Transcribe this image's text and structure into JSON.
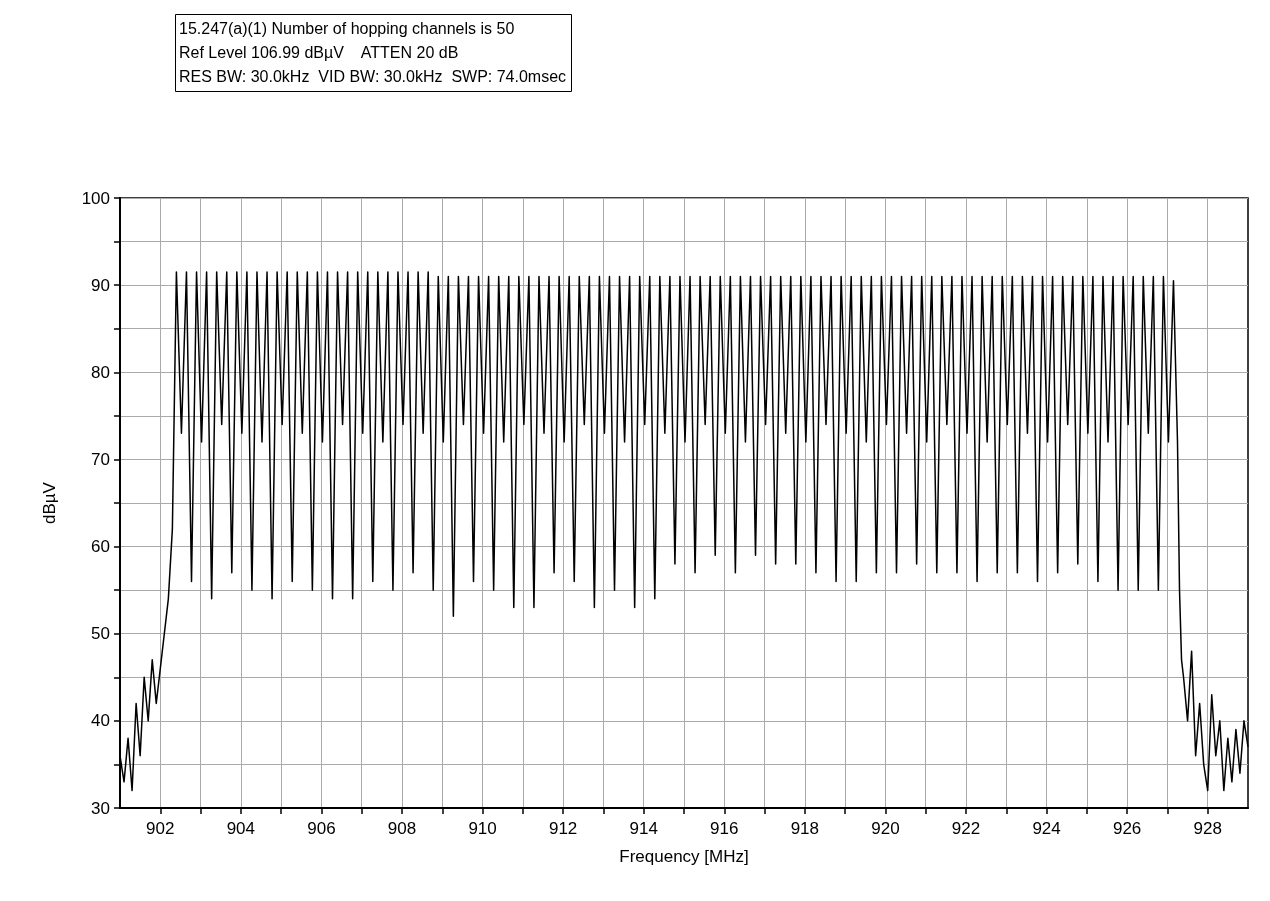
{
  "chart_data": {
    "type": "line",
    "title": "15.247(a)(1) Number of hopping channels is 50",
    "subtitle": "Ref Level 106.99 dBµV    ATTEN 20 dB\nRES BW: 30.0kHz  VID BW: 30.0kHz  SWP: 74.0msec",
    "xlabel": "Frequency [MHz]",
    "ylabel": "dBµV",
    "series": [
      {
        "color": "#000000",
        "x": [
          901.0,
          901.1,
          901.2,
          901.3,
          901.4,
          901.5,
          901.6,
          901.7,
          901.8,
          901.9,
          902.0,
          902.1,
          902.2,
          902.3,
          902.4,
          902.525,
          902.65,
          902.775,
          902.9,
          903.025,
          903.15,
          903.275,
          903.4,
          903.525,
          903.65,
          903.775,
          903.9,
          904.025,
          904.15,
          904.275,
          904.4,
          904.525,
          904.65,
          904.775,
          904.9,
          905.025,
          905.15,
          905.275,
          905.4,
          905.525,
          905.65,
          905.775,
          905.9,
          906.025,
          906.15,
          906.275,
          906.4,
          906.525,
          906.65,
          906.775,
          906.9,
          907.025,
          907.15,
          907.275,
          907.4,
          907.525,
          907.65,
          907.775,
          907.9,
          908.025,
          908.15,
          908.275,
          908.4,
          908.525,
          908.65,
          908.775,
          908.9,
          909.025,
          909.15,
          909.275,
          909.4,
          909.525,
          909.65,
          909.775,
          909.9,
          910.025,
          910.15,
          910.275,
          910.4,
          910.525,
          910.65,
          910.775,
          910.9,
          911.025,
          911.15,
          911.275,
          911.4,
          911.525,
          911.65,
          911.775,
          911.9,
          912.025,
          912.15,
          912.275,
          912.4,
          912.525,
          912.65,
          912.775,
          912.9,
          913.025,
          913.15,
          913.275,
          913.4,
          913.525,
          913.65,
          913.775,
          913.9,
          914.025,
          914.15,
          914.275,
          914.4,
          914.525,
          914.65,
          914.775,
          914.9,
          915.025,
          915.15,
          915.275,
          915.4,
          915.525,
          915.65,
          915.775,
          915.9,
          916.025,
          916.15,
          916.275,
          916.4,
          916.525,
          916.65,
          916.775,
          916.9,
          917.025,
          917.15,
          917.275,
          917.4,
          917.525,
          917.65,
          917.775,
          917.9,
          918.025,
          918.15,
          918.275,
          918.4,
          918.525,
          918.65,
          918.775,
          918.9,
          919.025,
          919.15,
          919.275,
          919.4,
          919.525,
          919.65,
          919.775,
          919.9,
          920.025,
          920.15,
          920.275,
          920.4,
          920.525,
          920.65,
          920.775,
          920.9,
          921.025,
          921.15,
          921.275,
          921.4,
          921.525,
          921.65,
          921.775,
          921.9,
          922.025,
          922.15,
          922.275,
          922.4,
          922.525,
          922.65,
          922.775,
          922.9,
          923.025,
          923.15,
          923.275,
          923.4,
          923.525,
          923.65,
          923.775,
          923.9,
          924.025,
          924.15,
          924.275,
          924.4,
          924.525,
          924.65,
          924.775,
          924.9,
          925.025,
          925.15,
          925.275,
          925.4,
          925.525,
          925.65,
          925.775,
          925.9,
          926.025,
          926.15,
          926.275,
          926.4,
          926.525,
          926.65,
          926.775,
          926.9,
          927.025,
          927.15,
          927.25,
          927.3,
          927.35,
          927.4,
          927.5,
          927.6,
          927.7,
          927.8,
          927.9,
          928.0,
          928.1,
          928.2,
          928.3,
          928.4,
          928.5,
          928.6,
          928.7,
          928.8,
          928.9,
          929.0
        ],
        "values": [
          36,
          33,
          38,
          32,
          42,
          36,
          45,
          40,
          47,
          42,
          46,
          50,
          54,
          62,
          91.5,
          73,
          91.5,
          56,
          91.5,
          72,
          91.5,
          54,
          91.5,
          74,
          91.5,
          57,
          91.5,
          73,
          91.5,
          55,
          91.5,
          72,
          91.5,
          54,
          91.5,
          74,
          91.5,
          56,
          91.5,
          73,
          91.5,
          55,
          91.5,
          72,
          91.5,
          54,
          91.5,
          74,
          91.5,
          54,
          91.5,
          73,
          91.5,
          56,
          91.5,
          72,
          91.5,
          55,
          91.5,
          74,
          91.5,
          57,
          91.5,
          73,
          91.5,
          55,
          91,
          72,
          91,
          52,
          91,
          74,
          91,
          56,
          91,
          73,
          91,
          55,
          91,
          72,
          91,
          53,
          91,
          74,
          91,
          53,
          91,
          73,
          91,
          57,
          91,
          72,
          91,
          56,
          91,
          74,
          91,
          53,
          91,
          73,
          91,
          55,
          91,
          72,
          91,
          53,
          91,
          74,
          91,
          54,
          91,
          73,
          91,
          58,
          91,
          72,
          91,
          57,
          91,
          74,
          91,
          59,
          91,
          73,
          91,
          57,
          91,
          72,
          91,
          59,
          91,
          74,
          91,
          58,
          91,
          73,
          91,
          58,
          91,
          72,
          91,
          57,
          91,
          74,
          91,
          56,
          91,
          73,
          91,
          56,
          91,
          72,
          91,
          57,
          91,
          74,
          91,
          57,
          91,
          73,
          91,
          58,
          91,
          72,
          91,
          57,
          91,
          74,
          91,
          57,
          91,
          73,
          91,
          56,
          91,
          72,
          91,
          57,
          91,
          74,
          91,
          57,
          91,
          73,
          91,
          56,
          91,
          72,
          91,
          57,
          91,
          74,
          91,
          58,
          91,
          73,
          91,
          56,
          91,
          72,
          91,
          55,
          91,
          74,
          91,
          55,
          91,
          73,
          91,
          55,
          91,
          72,
          90.5,
          72,
          55,
          47,
          45,
          40,
          48,
          36,
          42,
          35,
          32,
          43,
          36,
          40,
          32,
          38,
          33,
          39,
          34,
          40,
          37
        ]
      }
    ],
    "xlim": [
      901,
      929
    ],
    "xticks": [
      902,
      {
        "value": 903,
        "label": null
      },
      904,
      {
        "value": 905,
        "label": null
      },
      906,
      {
        "value": 907,
        "label": null
      },
      908,
      {
        "value": 909,
        "label": null
      },
      910,
      {
        "value": 911,
        "label": null
      },
      912,
      {
        "value": 913,
        "label": null
      },
      914,
      {
        "value": 915,
        "label": null
      },
      916,
      {
        "value": 917,
        "label": null
      },
      918,
      {
        "value": 919,
        "label": null
      },
      920,
      {
        "value": 921,
        "label": null
      },
      922,
      {
        "value": 923,
        "label": null
      },
      924,
      {
        "value": 925,
        "label": null
      },
      926,
      {
        "value": 927,
        "label": null
      },
      928
    ],
    "ylim": [
      30,
      100
    ],
    "yticks": [
      30,
      {
        "value": 35,
        "label": null
      },
      40,
      {
        "value": 45,
        "label": null
      },
      50,
      {
        "value": 55,
        "label": null
      },
      60,
      {
        "value": 65,
        "label": null
      },
      70,
      {
        "value": 75,
        "label": null
      },
      80,
      {
        "value": 85,
        "label": null
      },
      90,
      {
        "value": 95,
        "label": null
      },
      100
    ],
    "grid": true,
    "marker": "none",
    "line_style": "solid"
  }
}
